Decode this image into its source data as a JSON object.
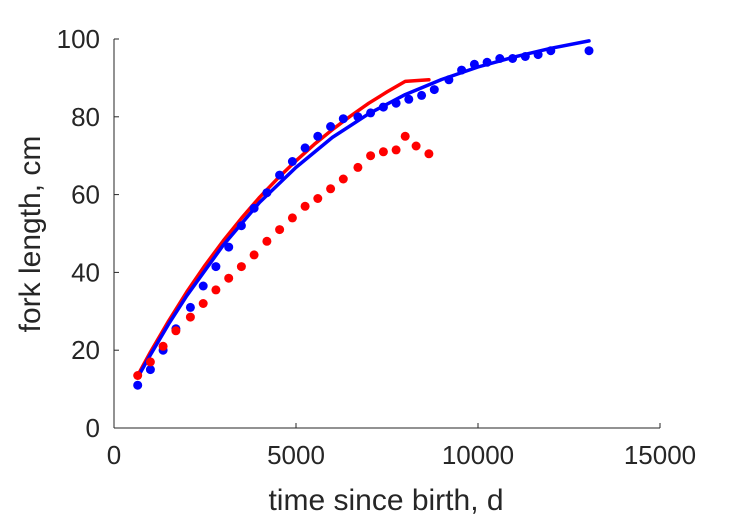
{
  "chart_data": {
    "type": "scatter",
    "title": "",
    "xlabel": "time since birth, d",
    "ylabel": "fork length, cm",
    "xlim": [
      0,
      15000
    ],
    "ylim": [
      0,
      100
    ],
    "x_ticks": [
      0,
      5000,
      10000,
      15000
    ],
    "y_ticks": [
      0,
      20,
      40,
      60,
      80,
      100
    ],
    "x_tick_labels": [
      "0",
      "5000",
      "10000",
      "15000"
    ],
    "y_tick_labels": [
      "0",
      "20",
      "40",
      "60",
      "80",
      "100"
    ],
    "grid": false,
    "legend": "none",
    "series": [
      {
        "kind": "points",
        "color": "#0000ff",
        "x": [
          650,
          1000,
          1350,
          1700,
          2100,
          2450,
          2800,
          3150,
          3500,
          3850,
          4200,
          4550,
          4900,
          5250,
          5600,
          5950,
          6300,
          6700,
          7050,
          7400,
          7750,
          8100,
          8450,
          8800,
          9200,
          9550,
          9900,
          10250,
          10600,
          10950,
          11300,
          11650,
          12000,
          13050
        ],
        "y": [
          11,
          15,
          20,
          25.5,
          31,
          36.5,
          41.5,
          46.5,
          52,
          56.5,
          60.5,
          65,
          68.5,
          72,
          75,
          77.5,
          79.5,
          80,
          81,
          82.5,
          83.5,
          84.5,
          85.5,
          87,
          89.5,
          92,
          93.5,
          94,
          95,
          95,
          95.5,
          96,
          97,
          97
        ]
      },
      {
        "kind": "points",
        "color": "#ff0000",
        "x": [
          650,
          1000,
          1350,
          1700,
          2100,
          2450,
          2800,
          3150,
          3500,
          3850,
          4200,
          4550,
          4900,
          5250,
          5600,
          5950,
          6300,
          6700,
          7050,
          7400,
          7750,
          8000,
          8300,
          8650
        ],
        "y": [
          13.5,
          17,
          21,
          25,
          28.5,
          32,
          35.5,
          38.5,
          41.5,
          44.5,
          48,
          51,
          54,
          57,
          59,
          61.5,
          64,
          67,
          70,
          71,
          71.5,
          75,
          72.5,
          70.5
        ]
      },
      {
        "kind": "line",
        "color": "#ff0000",
        "x": [
          650,
          1000,
          1500,
          2000,
          2500,
          3000,
          3500,
          4000,
          4500,
          5000,
          5500,
          6000,
          6500,
          7000,
          7500,
          8000,
          8650
        ],
        "y": [
          13.5,
          19.5,
          27.5,
          35,
          41.8,
          48.1,
          53.9,
          59.3,
          64.2,
          68.7,
          72.9,
          76.7,
          80.2,
          83.5,
          86.4,
          89.1,
          89.5
        ]
      },
      {
        "kind": "line",
        "color": "#0000ff",
        "x": [
          650,
          1000,
          1500,
          2000,
          3000,
          4000,
          5000,
          6000,
          7000,
          8000,
          9000,
          10000,
          11000,
          12000,
          13050
        ],
        "y": [
          13,
          18.8,
          26.7,
          34,
          47,
          58,
          67,
          74.7,
          80.8,
          85.7,
          89.6,
          92.8,
          95.4,
          97.6,
          99.5
        ]
      }
    ]
  }
}
